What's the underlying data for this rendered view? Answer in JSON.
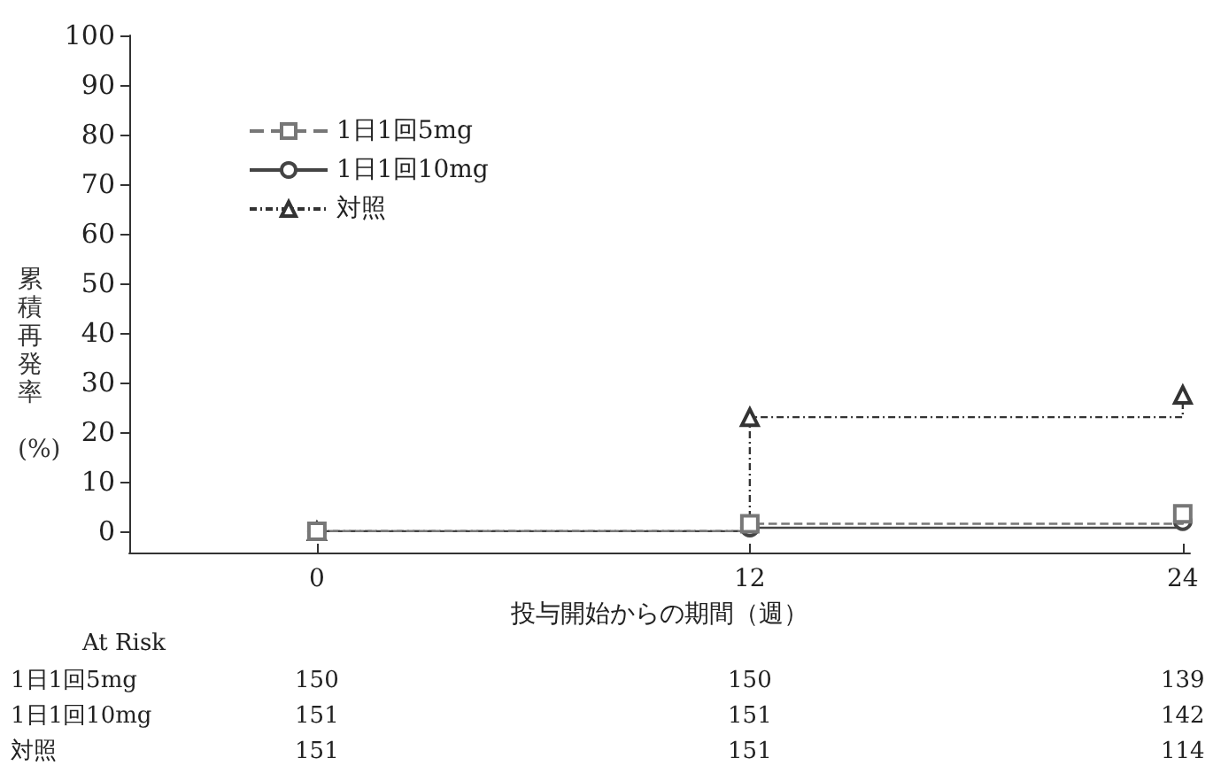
{
  "chart_data": {
    "type": "step",
    "ylabel": "累積再発率 (%)",
    "xlabel": "投与開始からの期間（週）",
    "x": [
      0,
      12,
      24
    ],
    "xlim": [
      -5.2,
      24.2
    ],
    "xticks": [
      0,
      12,
      24
    ],
    "ylim": [
      -4.3,
      100
    ],
    "yticks": [
      0,
      10,
      20,
      30,
      40,
      50,
      60,
      70,
      80,
      90,
      100
    ],
    "grid": false,
    "legend": "top left",
    "series": [
      {
        "name": "1日1回5mg",
        "color": "#777777",
        "values": [
          0,
          1.5,
          3.5
        ],
        "marker": "square",
        "line_style": "dashed"
      },
      {
        "name": "1日1回10mg",
        "color": "#444444",
        "values": [
          0,
          0.7,
          2
        ],
        "marker": "circle",
        "line_style": "solid"
      },
      {
        "name": "対照",
        "color": "#333333",
        "values": [
          0,
          23,
          27.5
        ],
        "marker": "triangle",
        "line_style": "dotted"
      }
    ],
    "annotations": [
      "At Risk",
      "150",
      "150",
      "139",
      "151",
      "151",
      "142",
      "151",
      "151",
      "114"
    ]
  }
}
